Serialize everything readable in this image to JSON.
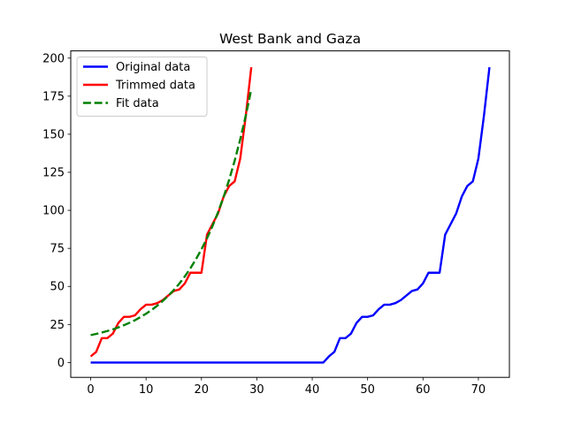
{
  "chart_data": {
    "type": "line",
    "title": "West Bank and Gaza",
    "xlabel": "",
    "ylabel": "",
    "xlim": [
      -3.6,
      75.6
    ],
    "ylim": [
      -9.75,
      204.75
    ],
    "xticks": [
      0,
      10,
      20,
      30,
      40,
      50,
      60,
      70
    ],
    "yticks": [
      0,
      25,
      50,
      75,
      100,
      125,
      150,
      175,
      200
    ],
    "grid": false,
    "legend_position": "top-left",
    "series": [
      {
        "name": "Original data",
        "color": "#0000ff",
        "style": "solid",
        "x": [
          0,
          1,
          2,
          3,
          4,
          5,
          6,
          7,
          8,
          9,
          10,
          11,
          12,
          13,
          14,
          15,
          16,
          17,
          18,
          19,
          20,
          21,
          22,
          23,
          24,
          25,
          26,
          27,
          28,
          29,
          30,
          31,
          32,
          33,
          34,
          35,
          36,
          37,
          38,
          39,
          40,
          41,
          42,
          43,
          44,
          45,
          46,
          47,
          48,
          49,
          50,
          51,
          52,
          53,
          54,
          55,
          56,
          57,
          58,
          59,
          60,
          61,
          62,
          63,
          64,
          65,
          66,
          67,
          68,
          69,
          70,
          71,
          72
        ],
        "y": [
          0,
          0,
          0,
          0,
          0,
          0,
          0,
          0,
          0,
          0,
          0,
          0,
          0,
          0,
          0,
          0,
          0,
          0,
          0,
          0,
          0,
          0,
          0,
          0,
          0,
          0,
          0,
          0,
          0,
          0,
          0,
          0,
          0,
          0,
          0,
          0,
          0,
          0,
          0,
          0,
          0,
          0,
          0,
          4,
          7,
          16,
          16,
          19,
          26,
          30,
          30,
          31,
          35,
          38,
          38,
          39,
          41,
          44,
          47,
          48,
          52,
          59,
          59,
          59,
          84,
          91,
          98,
          109,
          116,
          119,
          134,
          162,
          194
        ]
      },
      {
        "name": "Trimmed data",
        "color": "#ff0000",
        "style": "solid",
        "x": [
          0,
          1,
          2,
          3,
          4,
          5,
          6,
          7,
          8,
          9,
          10,
          11,
          12,
          13,
          14,
          15,
          16,
          17,
          18,
          19,
          20,
          21,
          22,
          23,
          24,
          25,
          26,
          27,
          28,
          29
        ],
        "y": [
          4,
          7,
          16,
          16,
          19,
          26,
          30,
          30,
          31,
          35,
          38,
          38,
          39,
          41,
          44,
          47,
          48,
          52,
          59,
          59,
          59,
          84,
          91,
          98,
          109,
          116,
          119,
          134,
          162,
          194
        ]
      },
      {
        "name": "Fit data",
        "color": "#008000",
        "style": "dashed",
        "x": [
          0,
          1,
          2,
          3,
          4,
          5,
          6,
          7,
          8,
          9,
          10,
          11,
          12,
          13,
          14,
          15,
          16,
          17,
          18,
          19,
          20,
          21,
          22,
          23,
          24,
          25,
          26,
          27,
          28,
          29
        ],
        "y": [
          18,
          18.8,
          19.7,
          20.7,
          21.8,
          23.1,
          24.5,
          26.1,
          27.8,
          29.9,
          32.1,
          34.5,
          37.3,
          40.4,
          43.8,
          47.6,
          51.8,
          56.6,
          61.9,
          67.8,
          74.4,
          81.6,
          89.7,
          98.8,
          108.8,
          120.1,
          132.6,
          146.6,
          162.2,
          179.5
        ]
      }
    ]
  }
}
